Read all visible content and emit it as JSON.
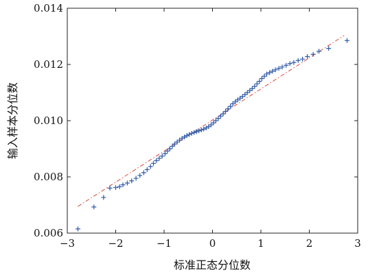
{
  "chart_data": {
    "type": "scatter",
    "title": "",
    "xlabel": "标准正态分位数",
    "ylabel": "输入样本分位数",
    "xlim": [
      -3,
      3
    ],
    "ylim": [
      0.006,
      0.014
    ],
    "x_ticks": [
      -3,
      -2,
      -1,
      0,
      1,
      2,
      3
    ],
    "y_ticks": [
      0.006,
      0.008,
      0.01,
      0.012,
      0.014
    ],
    "x_tick_labels": [
      "−3",
      "−2",
      "−1",
      "0",
      "1",
      "2",
      "3"
    ],
    "y_tick_labels": [
      "0.006",
      "0.008",
      "0.010",
      "0.012",
      "0.014"
    ],
    "grid": false,
    "legend": "none",
    "series": [
      {
        "marker": "plus",
        "color": "#2f5aa8",
        "x": [
          -2.78,
          -2.45,
          -2.25,
          -2.12,
          -2.0,
          -1.92,
          -1.85,
          -1.76,
          -1.67,
          -1.58,
          -1.5,
          -1.42,
          -1.35,
          -1.28,
          -1.22,
          -1.16,
          -1.1,
          -1.04,
          -0.98,
          -0.93,
          -0.88,
          -0.83,
          -0.78,
          -0.73,
          -0.68,
          -0.63,
          -0.58,
          -0.53,
          -0.48,
          -0.43,
          -0.38,
          -0.33,
          -0.28,
          -0.23,
          -0.18,
          -0.13,
          -0.08,
          -0.03,
          0.02,
          0.07,
          0.12,
          0.17,
          0.22,
          0.27,
          0.32,
          0.37,
          0.42,
          0.47,
          0.52,
          0.57,
          0.62,
          0.67,
          0.72,
          0.77,
          0.82,
          0.87,
          0.92,
          0.97,
          1.02,
          1.07,
          1.12,
          1.18,
          1.24,
          1.3,
          1.37,
          1.44,
          1.52,
          1.6,
          1.68,
          1.77,
          1.86,
          1.96,
          2.08,
          2.2,
          2.4,
          2.78
        ],
        "y": [
          0.00615,
          0.00693,
          0.00727,
          0.0076,
          0.00762,
          0.00765,
          0.00772,
          0.00778,
          0.00786,
          0.00795,
          0.00805,
          0.00815,
          0.00826,
          0.00837,
          0.00848,
          0.00858,
          0.00866,
          0.00874,
          0.00883,
          0.00892,
          0.009,
          0.00909,
          0.00917,
          0.00924,
          0.00931,
          0.00937,
          0.00942,
          0.00947,
          0.00951,
          0.00955,
          0.00958,
          0.00961,
          0.00964,
          0.00967,
          0.0097,
          0.00974,
          0.00979,
          0.00985,
          0.00992,
          0.01,
          0.01008,
          0.01016,
          0.01024,
          0.01033,
          0.01042,
          0.01051,
          0.0106,
          0.01067,
          0.01074,
          0.0108,
          0.01086,
          0.01093,
          0.011,
          0.01107,
          0.01114,
          0.01122,
          0.01131,
          0.0114,
          0.0115,
          0.01158,
          0.01166,
          0.01171,
          0.01176,
          0.01181,
          0.01186,
          0.01191,
          0.01197,
          0.01203,
          0.01207,
          0.01214,
          0.01219,
          0.01228,
          0.01236,
          0.01247,
          0.01257,
          0.01285
        ]
      }
    ],
    "reference_line": {
      "style": "dash-dot",
      "color": "#d9453a",
      "x": [
        -2.78,
        2.72
      ],
      "y": [
        0.00695,
        0.01303
      ]
    }
  }
}
